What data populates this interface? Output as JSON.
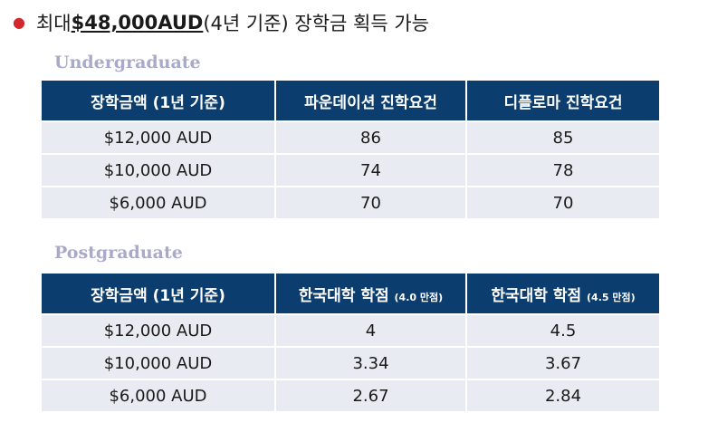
{
  "headline": {
    "prefix": "최대 ",
    "amount": "$48,000AUD",
    "suffix": "(4년 기준) 장학금 획득 가능"
  },
  "undergraduate": {
    "title": "Undergraduate",
    "columns": [
      "장학금액 (1년 기준)",
      "파운데이션 진학요건",
      "디플로마 진학요건"
    ],
    "rows": [
      [
        "$12,000 AUD",
        "86",
        "85"
      ],
      [
        "$10,000 AUD",
        "74",
        "78"
      ],
      [
        "$6,000 AUD",
        "70",
        "70"
      ]
    ]
  },
  "postgraduate": {
    "title": "Postgraduate",
    "columns": [
      {
        "main": "장학금액 (1년 기준)",
        "note": ""
      },
      {
        "main": "한국대학 학점 ",
        "note": "(4.0 만점)"
      },
      {
        "main": "한국대학 학점 ",
        "note": "(4.5 만점)"
      }
    ],
    "rows": [
      [
        "$12,000 AUD",
        "4",
        "4.5"
      ],
      [
        "$10,000 AUD",
        "3.34",
        "3.67"
      ],
      [
        "$6,000 AUD",
        "2.67",
        "2.84"
      ]
    ]
  }
}
